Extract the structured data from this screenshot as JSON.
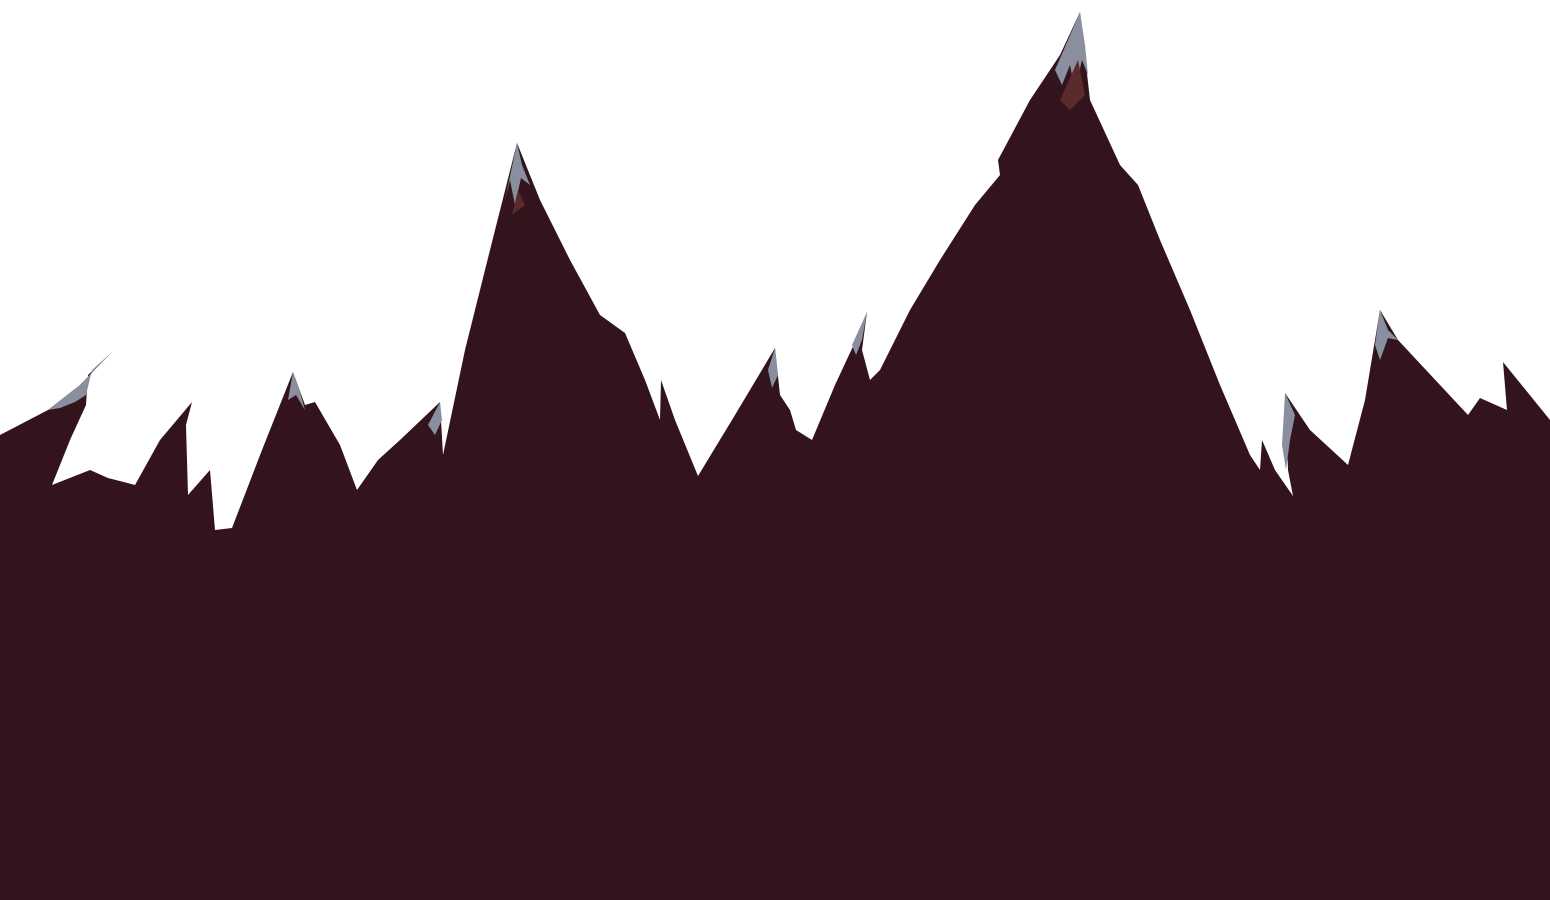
{
  "scene": {
    "sky_color": "#ffffff",
    "mountain_color": "#34141c",
    "snow_color": "#8a8fa0",
    "rock_highlight_color": "#5a2a2c"
  }
}
